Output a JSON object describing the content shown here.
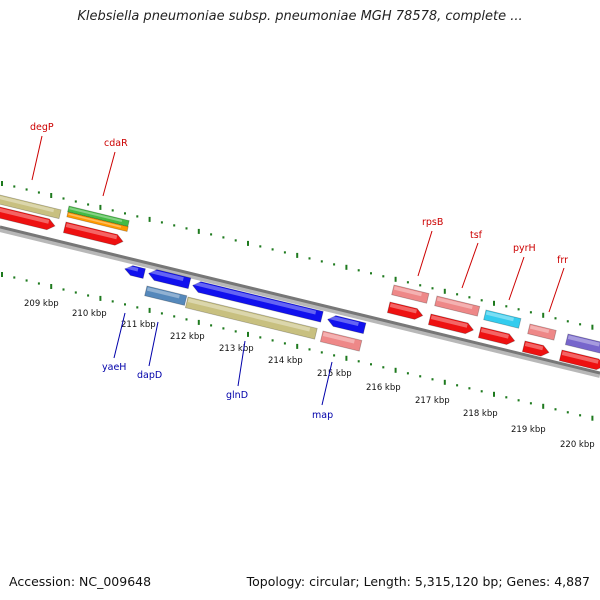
{
  "header": {
    "title": "Klebsiella pneumoniae subsp. pneumoniae MGH 78578, complete ..."
  },
  "footer": {
    "accession": "Accession: NC_009648",
    "summary": "Topology: circular; Length: 5,315,120 bp; Genes: 4,887"
  },
  "colors": {
    "tick": "#1e7a1e",
    "backbone": "#888888",
    "label_plus": "#cc0000",
    "label_minus": "#0000aa",
    "scale_text": "#111111"
  },
  "scale_labels": [
    {
      "label": "209 kbp",
      "kbp": 209
    },
    {
      "label": "210 kbp",
      "kbp": 210
    },
    {
      "label": "211 kbp",
      "kbp": 211
    },
    {
      "label": "212 kbp",
      "kbp": 212
    },
    {
      "label": "213 kbp",
      "kbp": 213
    },
    {
      "label": "214 kbp",
      "kbp": 214
    },
    {
      "label": "215 kbp",
      "kbp": 215
    },
    {
      "label": "216 kbp",
      "kbp": 216
    },
    {
      "label": "217 kbp",
      "kbp": 217
    },
    {
      "label": "218 kbp",
      "kbp": 218
    },
    {
      "label": "219 kbp",
      "kbp": 219
    },
    {
      "label": "220 kbp",
      "kbp": 220
    }
  ],
  "gene_labels_plus": [
    {
      "label": "degP"
    },
    {
      "label": "cdaR"
    },
    {
      "label": "rpsB"
    },
    {
      "label": "tsf"
    },
    {
      "label": "pyrH"
    },
    {
      "label": "frr"
    }
  ],
  "gene_labels_minus": [
    {
      "label": "yaeH"
    },
    {
      "label": "dapD"
    },
    {
      "label": "glnD"
    },
    {
      "label": "map"
    }
  ]
}
